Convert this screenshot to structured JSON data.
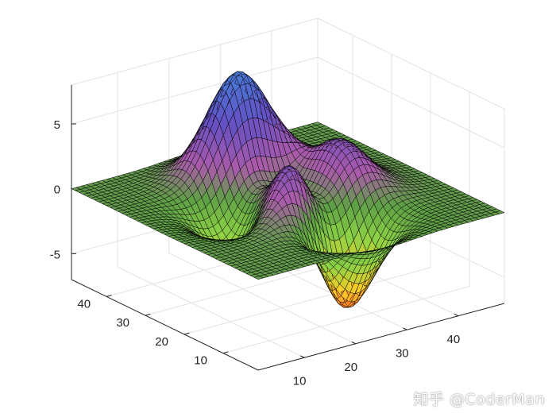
{
  "chart_data": {
    "type": "surface",
    "function": "peaks",
    "grid_size": 49,
    "x_range": [
      1,
      49
    ],
    "y_range": [
      1,
      49
    ],
    "zlim": [
      -7,
      8
    ],
    "x_ticks": [
      "10",
      "20",
      "30",
      "40"
    ],
    "y_ticks": [
      "10",
      "20",
      "30",
      "40"
    ],
    "z_ticks": [
      "-5",
      "0",
      "5"
    ],
    "grid": true,
    "box": true,
    "colormap": "multicolor (orange - yellow - green - purple - blue)",
    "edge_color": "#000000"
  },
  "watermark": {
    "text": "知乎 @CoderMan"
  }
}
